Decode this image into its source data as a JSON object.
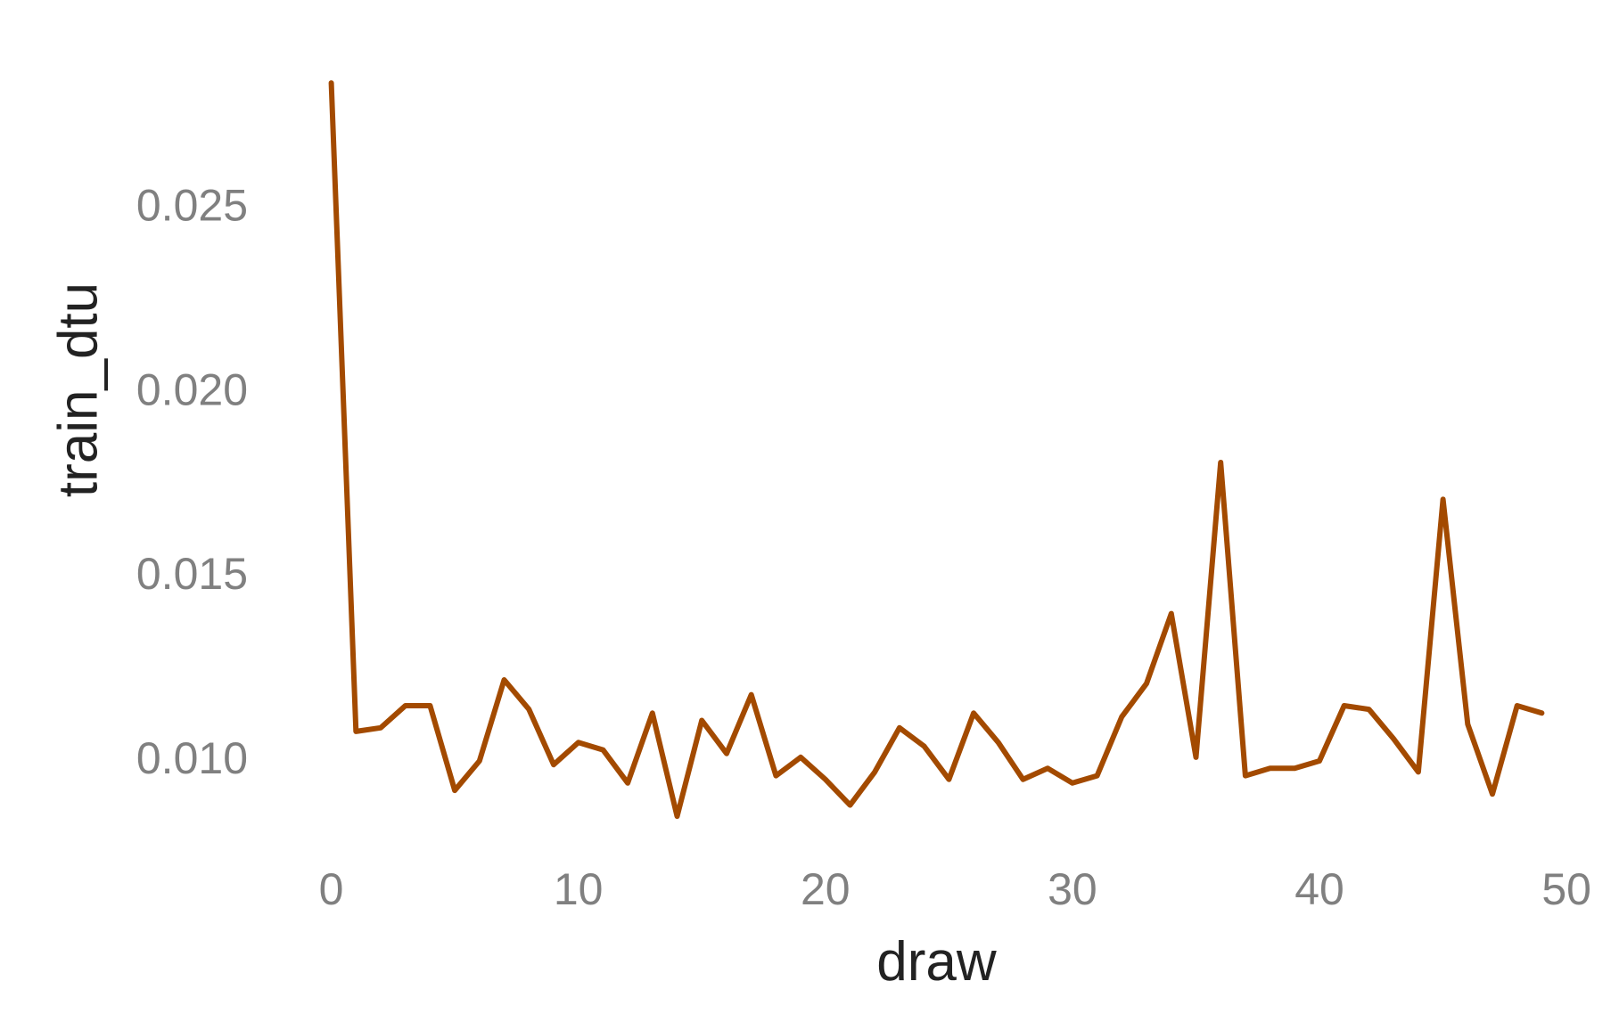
{
  "chart_data": {
    "type": "line",
    "title": "",
    "xlabel": "draw",
    "ylabel": "train_dtu",
    "xlim": [
      -1.5,
      50.5
    ],
    "ylim": [
      0.0077,
      0.0291
    ],
    "xticks": [
      0,
      10,
      20,
      30,
      40,
      50
    ],
    "yticks": [
      0.01,
      0.015,
      0.02,
      0.025
    ],
    "xtick_labels": [
      "0",
      "10",
      "20",
      "30",
      "40",
      "50"
    ],
    "ytick_labels": [
      "0.010",
      "0.015",
      "0.020",
      "0.025"
    ],
    "grid": false,
    "line_color": "#A34A00",
    "series": [
      {
        "x": [
          0,
          1,
          2,
          3,
          4,
          5,
          6,
          7,
          8,
          9,
          10,
          11,
          12,
          13,
          14,
          15,
          16,
          17,
          18,
          19,
          20,
          21,
          22,
          23,
          24,
          25,
          26,
          27,
          28,
          29,
          30,
          31,
          32,
          33,
          34,
          35,
          36,
          37,
          38,
          39,
          40,
          41,
          42,
          43,
          44,
          45,
          46,
          47,
          48,
          49
        ],
        "values": [
          0.0283,
          0.0107,
          0.0108,
          0.0114,
          0.0114,
          0.0091,
          0.0099,
          0.0121,
          0.0113,
          0.0098,
          0.0104,
          0.0102,
          0.0093,
          0.0112,
          0.0084,
          0.011,
          0.0101,
          0.0117,
          0.0095,
          0.01,
          0.0094,
          0.0087,
          0.0096,
          0.0108,
          0.0103,
          0.0094,
          0.0112,
          0.0104,
          0.0094,
          0.0097,
          0.0093,
          0.0095,
          0.0111,
          0.012,
          0.0139,
          0.01,
          0.018,
          0.0095,
          0.0097,
          0.0097,
          0.0099,
          0.0114,
          0.0113,
          0.0105,
          0.0096,
          0.017,
          0.0109,
          0.009,
          0.0114,
          0.0112
        ]
      }
    ]
  }
}
